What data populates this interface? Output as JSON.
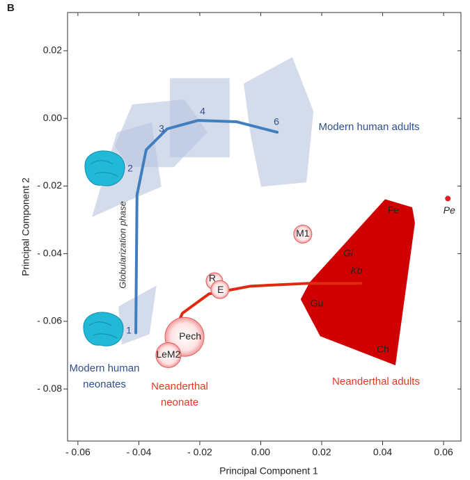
{
  "chart_data": {
    "type": "scatter",
    "panel_label": "B",
    "x_label": "Principal Component 1",
    "y_label": "Principal Component 2",
    "xlim": [
      -0.0634,
      0.0657
    ],
    "ylim": [
      -0.0954,
      0.0313
    ],
    "xticks": [
      {
        "value": -0.06,
        "label": "- 0.06"
      },
      {
        "value": -0.04,
        "label": "- 0.04"
      },
      {
        "value": -0.02,
        "label": "- 0.02"
      },
      {
        "value": 0,
        "label": "0.00"
      },
      0.02,
      0.04,
      0.06
    ],
    "yticks": [
      {
        "value": -0.08,
        "label": "- 0.08"
      },
      {
        "value": -0.06,
        "label": "- 0.06"
      },
      {
        "value": -0.04,
        "label": "- 0.04"
      },
      {
        "value": -0.02,
        "label": "- 0.02"
      },
      {
        "value": 0,
        "label": "0.00"
      },
      0.02
    ],
    "regions": [
      {
        "color": "#b7c4e0",
        "x": [
          -0.0467,
          -0.0342,
          -0.0365,
          -0.0456
        ],
        "y": [
          -0.0556,
          -0.0494,
          -0.0638,
          -0.0669
        ]
      },
      {
        "color": "#b7c4e0",
        "x": [
          -0.0554,
          -0.0472,
          -0.0358,
          -0.0326,
          -0.0433
        ],
        "y": [
          -0.0292,
          -0.0041,
          -0.0012,
          -0.0202,
          -0.0243
        ]
      },
      {
        "color": "#b7c4e0",
        "x": [
          -0.0479,
          -0.0422,
          -0.025,
          -0.0175,
          -0.0285,
          -0.0433
        ],
        "y": [
          -0.0082,
          0.0041,
          0.0056,
          -0.0041,
          -0.0144,
          -0.0144
        ]
      },
      {
        "color": "#b7c4e0",
        "x": [
          -0.0298,
          -0.0102,
          -0.0102,
          -0.0298
        ],
        "y": [
          0.0119,
          0.0119,
          -0.0115,
          -0.0115
        ]
      },
      {
        "color": "#b7c4e0",
        "x": [
          -0.0056,
          0.0104,
          0.0173,
          0.015,
          0.0001,
          -0.0033
        ],
        "y": [
          0.0103,
          0.0181,
          0.0021,
          -0.0189,
          -0.0202,
          -0.0051
        ]
      },
      {
        "color": "#d00000",
        "x": [
          0.0408,
          0.0497,
          0.0506,
          0.0442,
          0.0195,
          0.0131,
          0.0161
        ],
        "y": [
          -0.0239,
          -0.0263,
          -0.0309,
          -0.073,
          -0.0644,
          -0.0535,
          -0.0484
        ]
      }
    ],
    "trajectories": [
      {
        "color": "#3f7fbf",
        "x": [
          -0.041,
          -0.0406,
          -0.0376,
          -0.0307,
          -0.0205,
          -0.0079,
          0.0054
        ],
        "y": [
          -0.0634,
          -0.0226,
          -0.0093,
          -0.0031,
          -0.0006,
          -0.001,
          -0.0041
        ]
      },
      {
        "color": "#e02a10",
        "x": [
          -0.0307,
          -0.0257,
          -0.017,
          -0.0033,
          0.015,
          0.0328
        ],
        "y": [
          -0.0679,
          -0.0576,
          -0.0519,
          -0.0496,
          -0.0488,
          -0.0488
        ]
      }
    ],
    "specimens": [
      {
        "label": "Pech",
        "x": -0.025,
        "y": -0.0646,
        "size": 28
      },
      {
        "label": "LeM2",
        "x": -0.0303,
        "y": -0.07,
        "size": 18
      },
      {
        "label": "R",
        "x": -0.0152,
        "y": -0.0481,
        "size": 12
      },
      {
        "label": "E",
        "x": -0.0134,
        "y": -0.0506,
        "size": 13
      },
      {
        "label": "M1",
        "x": 0.0138,
        "y": -0.0342,
        "size": 13
      },
      {
        "label": "Pe",
        "x": 0.0614,
        "y": -0.0237,
        "size": 4,
        "color": "#e02020"
      }
    ],
    "stage_labels": [
      "1",
      "2",
      "3",
      "4",
      "6"
    ],
    "inner_labels": [
      "Fe",
      "Gi",
      "Kb",
      "Gu",
      "Ch"
    ],
    "phase_label": "Globularization phase",
    "group_labels": [
      {
        "lines": [
          "Modern human adults"
        ],
        "color": "#2f4f8f"
      },
      {
        "lines": [
          "Modern human",
          "neonates"
        ],
        "color": "#2f4f8f"
      },
      {
        "lines": [
          "Neanderthal",
          "neonate"
        ],
        "color": "#e03a20"
      },
      {
        "lines": [
          "Neanderthal adults"
        ],
        "color": "#e03a20"
      }
    ]
  }
}
